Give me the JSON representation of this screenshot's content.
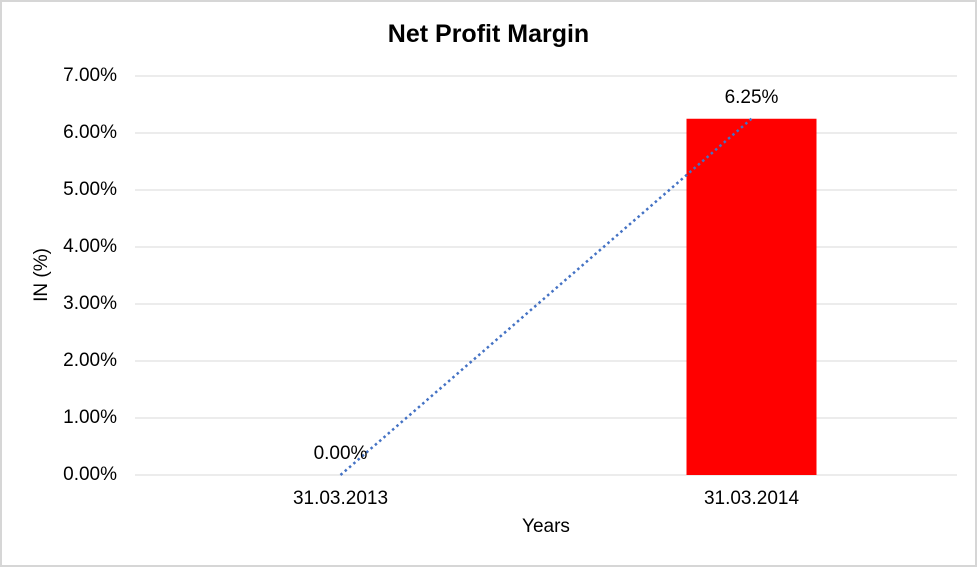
{
  "chart_data": {
    "type": "bar",
    "title": "Net Profit Margin",
    "xlabel": "Years",
    "ylabel": "IN (%)",
    "categories": [
      "31.03.2013",
      "31.03.2014"
    ],
    "values": [
      0,
      6.25
    ],
    "data_labels": [
      "0.00%",
      "6.25%"
    ],
    "ylim": [
      0,
      7
    ],
    "ytick_step": 1,
    "ytick_labels": [
      "0.00%",
      "1.00%",
      "2.00%",
      "3.00%",
      "4.00%",
      "5.00%",
      "6.00%",
      "7.00%"
    ],
    "grid": true,
    "legend": "none",
    "bar_color": "#ff0000",
    "gridline_color": "#d9d9d9",
    "axis_line_color": "#d9d9d9",
    "text_color": "#000000",
    "trendline": {
      "type": "linear",
      "style": "dotted",
      "color": "#4472c4",
      "from_point": [
        0,
        0
      ],
      "to_point": [
        1,
        6.25
      ]
    }
  }
}
